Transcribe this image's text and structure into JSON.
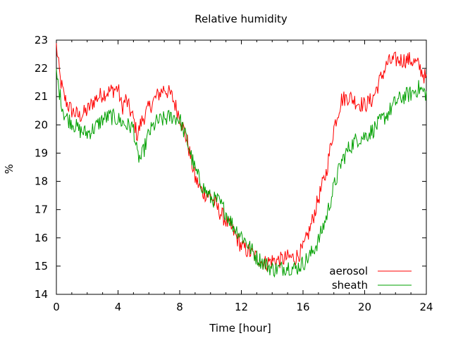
{
  "chart_data": {
    "type": "line",
    "title": "Relative humidity",
    "xlabel": "Time [hour]",
    "ylabel": "%",
    "xlim": [
      0,
      24
    ],
    "ylim": [
      14,
      23
    ],
    "xticks": [
      0,
      4,
      8,
      12,
      16,
      20,
      24
    ],
    "yticks": [
      14,
      15,
      16,
      17,
      18,
      19,
      20,
      21,
      22,
      23
    ],
    "grid": false,
    "legend_position": "bottom-right",
    "series": [
      {
        "name": "aerosol",
        "color": "#ff0000",
        "x": [
          0,
          0.25,
          0.5,
          0.75,
          1,
          1.5,
          2,
          2.5,
          3,
          3.5,
          4,
          4.25,
          4.5,
          5,
          5.25,
          5.5,
          6,
          6.5,
          7,
          7.5,
          8,
          8.5,
          9,
          9.5,
          10,
          10.5,
          11,
          11.5,
          12,
          12.5,
          13,
          13.5,
          14,
          14.5,
          15,
          15.5,
          16,
          16.5,
          17,
          17.5,
          18,
          18.5,
          19,
          19.5,
          20,
          20.5,
          21,
          21.5,
          22,
          22.5,
          23,
          23.5,
          24
        ],
        "y": [
          22.8,
          21.6,
          21.0,
          20.7,
          20.5,
          20.3,
          20.5,
          20.9,
          21.1,
          21.2,
          21.3,
          20.6,
          20.9,
          20.2,
          19.6,
          20.1,
          20.6,
          21.0,
          21.3,
          21.0,
          20.3,
          19.4,
          18.1,
          17.6,
          17.5,
          17.0,
          16.6,
          16.2,
          15.7,
          15.5,
          15.3,
          15.1,
          15.2,
          15.2,
          15.3,
          15.3,
          15.6,
          16.4,
          17.4,
          18.3,
          19.9,
          20.9,
          21.0,
          20.8,
          20.7,
          20.9,
          21.6,
          22.2,
          22.3,
          22.3,
          22.3,
          22.1,
          21.6
        ]
      },
      {
        "name": "sheath",
        "color": "#00a000",
        "x": [
          0,
          0.25,
          0.5,
          0.75,
          1,
          1.5,
          2,
          2.5,
          3,
          3.5,
          4,
          4.5,
          5,
          5.25,
          5.5,
          6,
          6.5,
          7,
          7.5,
          8,
          8.5,
          9,
          9.5,
          10,
          10.5,
          11,
          11.5,
          12,
          12.5,
          13,
          13.5,
          14,
          14.5,
          15,
          15.5,
          16,
          16.5,
          17,
          17.5,
          18,
          18.5,
          19,
          19.5,
          20,
          20.5,
          21,
          21.5,
          22,
          22.5,
          23,
          23.5,
          24
        ],
        "y": [
          21.8,
          21.0,
          20.4,
          20.2,
          20.1,
          19.8,
          19.7,
          19.9,
          20.2,
          20.3,
          20.2,
          20.0,
          19.9,
          18.9,
          18.8,
          19.7,
          20.1,
          20.2,
          20.3,
          20.2,
          19.4,
          18.4,
          17.8,
          17.4,
          17.3,
          16.9,
          16.4,
          16.1,
          15.7,
          15.3,
          15.1,
          14.9,
          14.9,
          15.0,
          14.9,
          15.1,
          15.4,
          15.9,
          16.7,
          17.8,
          18.7,
          19.2,
          19.5,
          19.6,
          19.8,
          20.1,
          20.4,
          20.8,
          21.0,
          21.1,
          21.3,
          21.1
        ]
      }
    ]
  }
}
